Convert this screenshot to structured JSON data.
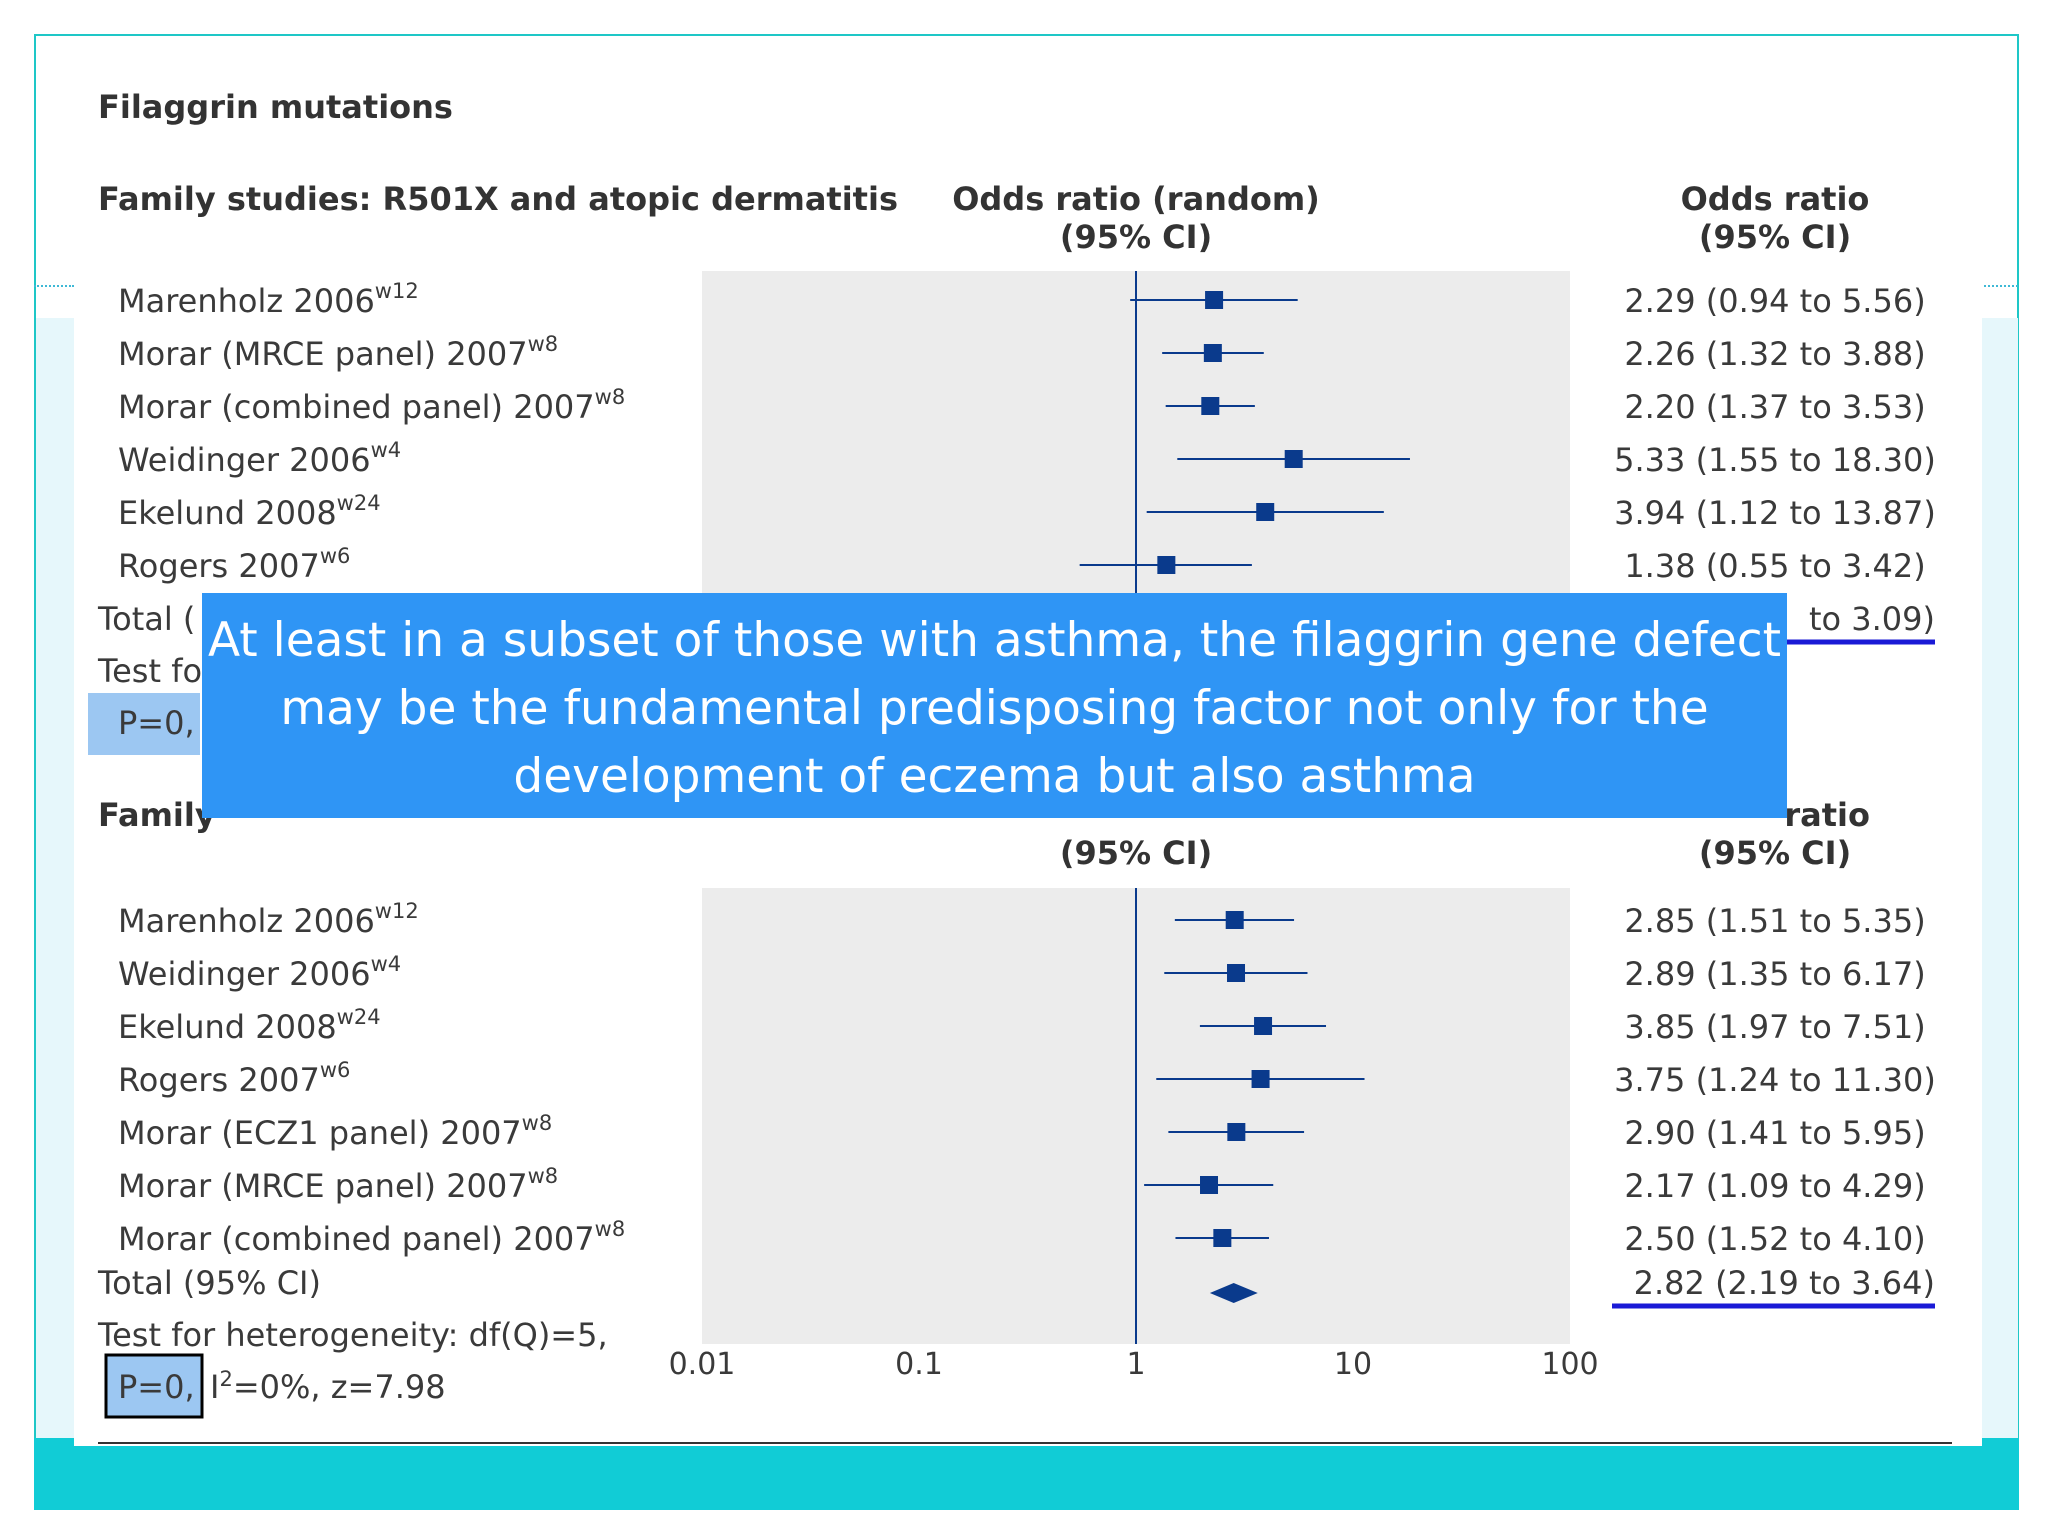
{
  "colors": {
    "frame": "#1ec7c7",
    "bottom_bar": "#11ccd6",
    "side_band": "#e6f7fb",
    "plot_bg": "#ececec",
    "marker": "#0a3a8c",
    "underline": "#1a1ad6",
    "highlight": "#9cc7f2",
    "overlay_bg": "#2f95f5",
    "overlay_text": "#ffffff"
  },
  "overlay": {
    "text": "At least in a subset of those with asthma, the filaggrin gene defect may be the fundamental predisposing factor not only for the development of eczema but also asthma"
  },
  "chart_data": {
    "type": "forest",
    "title": "Filaggrin mutations",
    "x_scale": "log",
    "xlim": [
      0.01,
      100
    ],
    "x_ticks": [
      "0.01",
      "0.1",
      "1",
      "10",
      "100"
    ],
    "reference_line": 1,
    "panels": [
      {
        "heading": "Family studies: R501X and atopic dermatitis",
        "col_header_mid": [
          "Odds ratio (random)",
          "(95% CI)"
        ],
        "col_header_right": [
          "Odds ratio",
          "(95% CI)"
        ],
        "studies": [
          {
            "name": "Marenholz 2006",
            "ref": "w12",
            "or": 2.29,
            "lo": 0.94,
            "hi": 5.56,
            "label": "2.29 (0.94 to 5.56)"
          },
          {
            "name": "Morar (MRCE panel) 2007",
            "ref": "w8",
            "or": 2.26,
            "lo": 1.32,
            "hi": 3.88,
            "label": "2.26 (1.32 to 3.88)"
          },
          {
            "name": "Morar (combined panel) 2007",
            "ref": "w8",
            "or": 2.2,
            "lo": 1.37,
            "hi": 3.53,
            "label": "2.20 (1.37 to 3.53)"
          },
          {
            "name": "Weidinger 2006",
            "ref": "w4",
            "or": 5.33,
            "lo": 1.55,
            "hi": 18.3,
            "label": "5.33 (1.55 to 18.30)"
          },
          {
            "name": "Ekelund 2008",
            "ref": "w24",
            "or": 3.94,
            "lo": 1.12,
            "hi": 13.87,
            "label": "3.94 (1.12 to 13.87)"
          },
          {
            "name": "Rogers 2007",
            "ref": "w6",
            "or": 1.38,
            "lo": 0.55,
            "hi": 3.42,
            "label": "1.38 (0.55 to 3.42)"
          }
        ],
        "total_label": "Total (",
        "total_value": "to 3.09)",
        "het_label": "Test fo",
        "p_label": "P=0,"
      },
      {
        "heading": "Family",
        "col_header_mid": [
          "",
          "(95% CI)"
        ],
        "col_header_right": [
          "ratio",
          "(95% CI)"
        ],
        "studies": [
          {
            "name": "Marenholz 2006",
            "ref": "w12",
            "or": 2.85,
            "lo": 1.51,
            "hi": 5.35,
            "label": "2.85 (1.51 to 5.35)"
          },
          {
            "name": "Weidinger 2006",
            "ref": "w4",
            "or": 2.89,
            "lo": 1.35,
            "hi": 6.17,
            "label": "2.89 (1.35 to 6.17)"
          },
          {
            "name": "Ekelund 2008",
            "ref": "w24",
            "or": 3.85,
            "lo": 1.97,
            "hi": 7.51,
            "label": "3.85 (1.97 to 7.51)"
          },
          {
            "name": "Rogers 2007",
            "ref": "w6",
            "or": 3.75,
            "lo": 1.24,
            "hi": 11.3,
            "label": "3.75 (1.24 to 11.30)"
          },
          {
            "name": "Morar (ECZ1 panel) 2007",
            "ref": "w8",
            "or": 2.9,
            "lo": 1.41,
            "hi": 5.95,
            "label": "2.90 (1.41 to 5.95)"
          },
          {
            "name": "Morar (MRCE panel) 2007",
            "ref": "w8",
            "or": 2.17,
            "lo": 1.09,
            "hi": 4.29,
            "label": "2.17 (1.09 to 4.29)"
          },
          {
            "name": "Morar (combined panel) 2007",
            "ref": "w8",
            "or": 2.5,
            "lo": 1.52,
            "hi": 4.1,
            "label": "2.50 (1.52 to 4.10)"
          }
        ],
        "total_label": "Total (95% CI)",
        "total": {
          "or": 2.82,
          "lo": 2.19,
          "hi": 3.64,
          "label": "2.82 (2.19 to 3.64)"
        },
        "het_label": "Test for heterogeneity: df(Q)=5,",
        "p_label": "P=0,",
        "stats_rest": "=0%, z=7.98",
        "stats_I": "I",
        "stats_sup": "2"
      }
    ]
  }
}
